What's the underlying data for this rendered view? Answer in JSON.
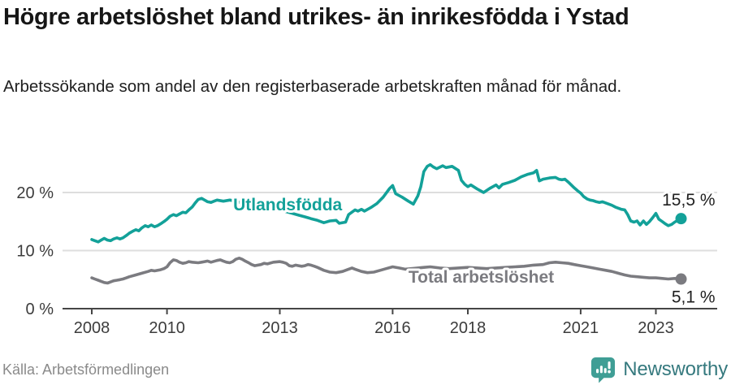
{
  "page": {
    "source": "Källa: Arbetsförmedlingen",
    "brand": "Newsworthy"
  },
  "colors": {
    "accent_teal": "#13a199",
    "series_gray": "#7b7b80",
    "grid": "#dedede",
    "axis": "#454545",
    "axis_text": "#3c3c3c",
    "value_text": "#1f1f1f",
    "brand_teal": "#3f9e95"
  },
  "chart_data": {
    "type": "line",
    "title": "Högre arbetslöshet bland utrikes- än inrikesfödda i Ystad",
    "subtitle": "Arbetssökande som andel av den registerbaserade arbetskraften månad för månad.",
    "grid": true,
    "legend_position": "inline-labels",
    "x_axis": {
      "range": [
        2008,
        2023.67
      ],
      "ticks": [
        2008,
        2010,
        2013,
        2016,
        2018,
        2021,
        2023
      ]
    },
    "y_axis": {
      "range": [
        0,
        27
      ],
      "unit": "%",
      "ticks": [
        0,
        10,
        20
      ],
      "tick_labels": [
        "0 %",
        "10 %",
        "20 %"
      ]
    },
    "series": [
      {
        "name": "Utlandsfödda",
        "color_key": "accent_teal",
        "end_value": 15.5,
        "end_label": "15,5 %",
        "end_label_offset": [
          42,
          -16
        ],
        "label_anchor": {
          "year": 2011.76,
          "value": 16.9
        },
        "points": [
          [
            2008.0,
            11.9
          ],
          [
            2008.08,
            11.7
          ],
          [
            2008.17,
            11.5
          ],
          [
            2008.25,
            11.8
          ],
          [
            2008.33,
            12.1
          ],
          [
            2008.42,
            11.8
          ],
          [
            2008.5,
            11.7
          ],
          [
            2008.58,
            12.0
          ],
          [
            2008.67,
            12.2
          ],
          [
            2008.75,
            12.0
          ],
          [
            2008.83,
            12.2
          ],
          [
            2008.92,
            12.6
          ],
          [
            2009.0,
            13.0
          ],
          [
            2009.08,
            13.3
          ],
          [
            2009.17,
            13.6
          ],
          [
            2009.25,
            13.4
          ],
          [
            2009.33,
            13.9
          ],
          [
            2009.42,
            14.3
          ],
          [
            2009.5,
            14.1
          ],
          [
            2009.58,
            14.4
          ],
          [
            2009.67,
            14.1
          ],
          [
            2009.75,
            14.3
          ],
          [
            2009.83,
            14.6
          ],
          [
            2009.92,
            15.0
          ],
          [
            2010.0,
            15.4
          ],
          [
            2010.08,
            15.9
          ],
          [
            2010.17,
            16.2
          ],
          [
            2010.25,
            16.0
          ],
          [
            2010.33,
            16.3
          ],
          [
            2010.42,
            16.6
          ],
          [
            2010.5,
            16.5
          ],
          [
            2010.58,
            17.0
          ],
          [
            2010.67,
            17.5
          ],
          [
            2010.75,
            18.2
          ],
          [
            2010.83,
            18.8
          ],
          [
            2010.92,
            19.0
          ],
          [
            2011.0,
            18.7
          ],
          [
            2011.08,
            18.4
          ],
          [
            2011.17,
            18.3
          ],
          [
            2011.25,
            18.5
          ],
          [
            2011.33,
            18.7
          ],
          [
            2011.5,
            18.5
          ],
          [
            2011.67,
            18.7
          ],
          [
            2011.83,
            18.5
          ],
          [
            2012.0,
            18.2
          ],
          [
            2012.17,
            17.8
          ],
          [
            2012.33,
            17.5
          ],
          [
            2012.5,
            17.7
          ],
          [
            2012.67,
            17.4
          ],
          [
            2012.83,
            17.2
          ],
          [
            2013.0,
            17.0
          ],
          [
            2013.17,
            16.7
          ],
          [
            2013.33,
            16.4
          ],
          [
            2013.5,
            16.1
          ],
          [
            2013.67,
            15.8
          ],
          [
            2013.83,
            15.5
          ],
          [
            2014.0,
            15.2
          ],
          [
            2014.17,
            14.8
          ],
          [
            2014.33,
            15.1
          ],
          [
            2014.5,
            15.2
          ],
          [
            2014.58,
            14.7
          ],
          [
            2014.75,
            14.9
          ],
          [
            2014.83,
            16.2
          ],
          [
            2015.0,
            17.0
          ],
          [
            2015.08,
            16.8
          ],
          [
            2015.17,
            17.1
          ],
          [
            2015.25,
            16.8
          ],
          [
            2015.42,
            17.4
          ],
          [
            2015.58,
            18.1
          ],
          [
            2015.75,
            19.2
          ],
          [
            2015.92,
            20.7
          ],
          [
            2016.0,
            21.2
          ],
          [
            2016.08,
            19.8
          ],
          [
            2016.25,
            19.2
          ],
          [
            2016.42,
            18.5
          ],
          [
            2016.55,
            18.0
          ],
          [
            2016.67,
            19.4
          ],
          [
            2016.75,
            21.0
          ],
          [
            2016.83,
            23.6
          ],
          [
            2016.92,
            24.5
          ],
          [
            2017.0,
            24.8
          ],
          [
            2017.08,
            24.4
          ],
          [
            2017.17,
            24.1
          ],
          [
            2017.33,
            24.6
          ],
          [
            2017.42,
            24.3
          ],
          [
            2017.58,
            24.5
          ],
          [
            2017.75,
            23.8
          ],
          [
            2017.83,
            22.1
          ],
          [
            2017.92,
            21.4
          ],
          [
            2018.0,
            21.0
          ],
          [
            2018.08,
            21.3
          ],
          [
            2018.25,
            20.6
          ],
          [
            2018.42,
            20.0
          ],
          [
            2018.58,
            20.7
          ],
          [
            2018.75,
            21.3
          ],
          [
            2018.83,
            20.8
          ],
          [
            2018.92,
            21.4
          ],
          [
            2019.08,
            21.7
          ],
          [
            2019.25,
            22.1
          ],
          [
            2019.42,
            22.7
          ],
          [
            2019.58,
            23.1
          ],
          [
            2019.75,
            23.4
          ],
          [
            2019.83,
            23.8
          ],
          [
            2019.9,
            22.0
          ],
          [
            2020.0,
            22.3
          ],
          [
            2020.17,
            22.5
          ],
          [
            2020.33,
            22.6
          ],
          [
            2020.42,
            22.3
          ],
          [
            2020.5,
            22.2
          ],
          [
            2020.58,
            22.3
          ],
          [
            2020.67,
            21.8
          ],
          [
            2020.75,
            21.3
          ],
          [
            2020.83,
            20.8
          ],
          [
            2020.92,
            20.3
          ],
          [
            2021.0,
            19.9
          ],
          [
            2021.08,
            19.3
          ],
          [
            2021.17,
            18.9
          ],
          [
            2021.25,
            18.7
          ],
          [
            2021.33,
            18.6
          ],
          [
            2021.42,
            18.4
          ],
          [
            2021.5,
            18.3
          ],
          [
            2021.58,
            18.4
          ],
          [
            2021.67,
            18.2
          ],
          [
            2021.75,
            18.0
          ],
          [
            2021.83,
            17.8
          ],
          [
            2021.92,
            17.5
          ],
          [
            2022.0,
            17.3
          ],
          [
            2022.08,
            17.1
          ],
          [
            2022.17,
            17.0
          ],
          [
            2022.25,
            16.2
          ],
          [
            2022.33,
            15.1
          ],
          [
            2022.42,
            14.9
          ],
          [
            2022.5,
            15.1
          ],
          [
            2022.58,
            14.4
          ],
          [
            2022.67,
            15.1
          ],
          [
            2022.75,
            14.5
          ],
          [
            2022.83,
            15.0
          ],
          [
            2022.92,
            15.7
          ],
          [
            2023.0,
            16.4
          ],
          [
            2023.08,
            15.4
          ],
          [
            2023.17,
            15.0
          ],
          [
            2023.25,
            14.6
          ],
          [
            2023.33,
            14.3
          ],
          [
            2023.42,
            14.5
          ],
          [
            2023.5,
            14.9
          ],
          [
            2023.58,
            15.2
          ],
          [
            2023.67,
            15.5
          ]
        ]
      },
      {
        "name": "Total arbetslöshet",
        "color_key": "series_gray",
        "end_value": 5.1,
        "end_label": "5,1 %",
        "end_label_offset": [
          42,
          29
        ],
        "label_anchor": {
          "year": 2016.42,
          "value": 4.5
        },
        "points": [
          [
            2008.0,
            5.3
          ],
          [
            2008.08,
            5.1
          ],
          [
            2008.17,
            4.9
          ],
          [
            2008.25,
            4.7
          ],
          [
            2008.33,
            4.5
          ],
          [
            2008.42,
            4.4
          ],
          [
            2008.5,
            4.6
          ],
          [
            2008.58,
            4.8
          ],
          [
            2008.67,
            4.9
          ],
          [
            2008.75,
            5.0
          ],
          [
            2008.83,
            5.1
          ],
          [
            2008.92,
            5.3
          ],
          [
            2009.0,
            5.5
          ],
          [
            2009.17,
            5.8
          ],
          [
            2009.33,
            6.1
          ],
          [
            2009.5,
            6.4
          ],
          [
            2009.58,
            6.6
          ],
          [
            2009.67,
            6.5
          ],
          [
            2009.83,
            6.7
          ],
          [
            2009.92,
            6.9
          ],
          [
            2010.0,
            7.2
          ],
          [
            2010.08,
            7.9
          ],
          [
            2010.17,
            8.4
          ],
          [
            2010.25,
            8.3
          ],
          [
            2010.33,
            8.0
          ],
          [
            2010.42,
            7.8
          ],
          [
            2010.5,
            7.9
          ],
          [
            2010.58,
            8.1
          ],
          [
            2010.67,
            8.0
          ],
          [
            2010.83,
            7.9
          ],
          [
            2010.92,
            8.0
          ],
          [
            2011.0,
            8.1
          ],
          [
            2011.08,
            8.2
          ],
          [
            2011.17,
            8.0
          ],
          [
            2011.33,
            8.3
          ],
          [
            2011.42,
            8.4
          ],
          [
            2011.5,
            8.2
          ],
          [
            2011.58,
            8.0
          ],
          [
            2011.67,
            7.9
          ],
          [
            2011.75,
            8.1
          ],
          [
            2011.83,
            8.5
          ],
          [
            2011.92,
            8.7
          ],
          [
            2012.0,
            8.5
          ],
          [
            2012.08,
            8.2
          ],
          [
            2012.17,
            7.9
          ],
          [
            2012.25,
            7.6
          ],
          [
            2012.33,
            7.4
          ],
          [
            2012.5,
            7.6
          ],
          [
            2012.58,
            7.8
          ],
          [
            2012.67,
            7.7
          ],
          [
            2012.83,
            8.0
          ],
          [
            2013.0,
            8.1
          ],
          [
            2013.08,
            8.0
          ],
          [
            2013.17,
            7.8
          ],
          [
            2013.25,
            7.4
          ],
          [
            2013.33,
            7.3
          ],
          [
            2013.42,
            7.5
          ],
          [
            2013.5,
            7.4
          ],
          [
            2013.58,
            7.3
          ],
          [
            2013.67,
            7.4
          ],
          [
            2013.75,
            7.6
          ],
          [
            2013.83,
            7.5
          ],
          [
            2013.92,
            7.3
          ],
          [
            2014.0,
            7.1
          ],
          [
            2014.17,
            6.6
          ],
          [
            2014.33,
            6.3
          ],
          [
            2014.5,
            6.2
          ],
          [
            2014.67,
            6.4
          ],
          [
            2014.83,
            6.8
          ],
          [
            2014.92,
            7.0
          ],
          [
            2015.0,
            6.8
          ],
          [
            2015.17,
            6.4
          ],
          [
            2015.33,
            6.2
          ],
          [
            2015.5,
            6.3
          ],
          [
            2015.67,
            6.6
          ],
          [
            2015.83,
            6.9
          ],
          [
            2016.0,
            7.2
          ],
          [
            2016.17,
            7.0
          ],
          [
            2016.33,
            6.8
          ],
          [
            2016.5,
            6.9
          ],
          [
            2016.67,
            7.0
          ],
          [
            2016.83,
            7.1
          ],
          [
            2017.0,
            7.2
          ],
          [
            2017.25,
            7.0
          ],
          [
            2017.5,
            6.9
          ],
          [
            2017.75,
            7.0
          ],
          [
            2018.0,
            7.1
          ],
          [
            2018.25,
            7.0
          ],
          [
            2018.5,
            6.9
          ],
          [
            2018.75,
            7.0
          ],
          [
            2019.0,
            7.1
          ],
          [
            2019.25,
            7.2
          ],
          [
            2019.5,
            7.3
          ],
          [
            2019.75,
            7.5
          ],
          [
            2020.0,
            7.6
          ],
          [
            2020.17,
            7.9
          ],
          [
            2020.33,
            8.0
          ],
          [
            2020.5,
            7.9
          ],
          [
            2020.67,
            7.8
          ],
          [
            2020.83,
            7.6
          ],
          [
            2021.0,
            7.4
          ],
          [
            2021.17,
            7.2
          ],
          [
            2021.33,
            7.0
          ],
          [
            2021.5,
            6.8
          ],
          [
            2021.67,
            6.6
          ],
          [
            2021.83,
            6.4
          ],
          [
            2022.0,
            6.1
          ],
          [
            2022.17,
            5.8
          ],
          [
            2022.33,
            5.6
          ],
          [
            2022.5,
            5.5
          ],
          [
            2022.67,
            5.4
          ],
          [
            2022.83,
            5.3
          ],
          [
            2023.0,
            5.3
          ],
          [
            2023.17,
            5.2
          ],
          [
            2023.33,
            5.1
          ],
          [
            2023.5,
            5.2
          ],
          [
            2023.67,
            5.1
          ]
        ]
      }
    ]
  }
}
